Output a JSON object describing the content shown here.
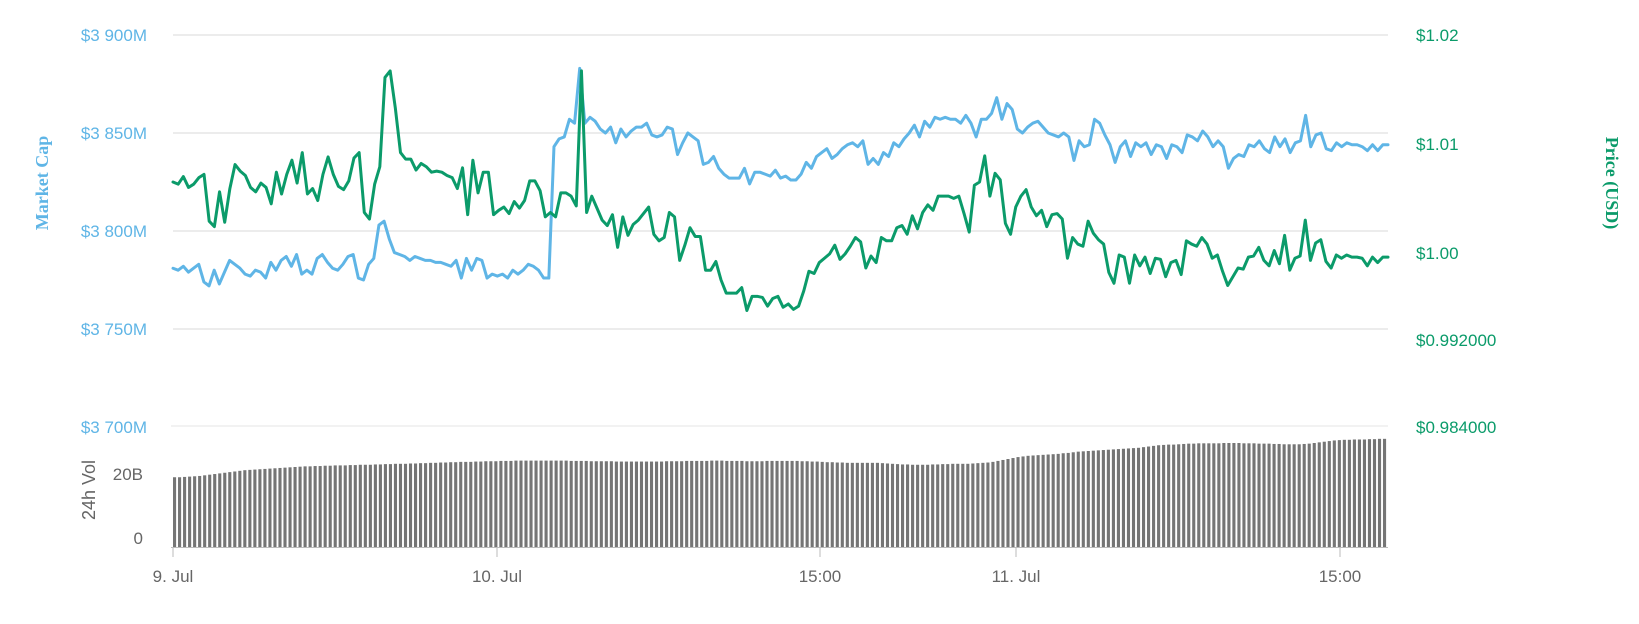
{
  "colors": {
    "market_cap": "#5fb5e6",
    "price": "#0b9b6a",
    "volume": "#757575",
    "grid": "#e6e6e6",
    "x_labels": "#666666"
  },
  "chart_data": [
    {
      "type": "line",
      "x_tick_labels": [
        "9. Jul",
        "10. Jul",
        "15:00",
        "11. Jul",
        "15:00"
      ],
      "grid": true,
      "left_axis": {
        "title": "Market Cap",
        "ticks": [
          "$3 900M",
          "$3 850M",
          "$3 800M",
          "$3 750M",
          "$3 700M"
        ],
        "tick_values": [
          3900,
          3850,
          3800,
          3750,
          3700
        ],
        "ylim": [
          3700,
          3900
        ],
        "unit": "M USD"
      },
      "right_axis": {
        "title": "Price (USD)",
        "ticks": [
          "$1.02",
          "$1.01",
          "$1.00",
          "$0.992000",
          "$0.984000"
        ],
        "tick_values": [
          1.02,
          1.01,
          1.0,
          0.992,
          0.984
        ],
        "ylim": [
          0.984,
          1.02
        ]
      },
      "series": [
        {
          "name": "Market Cap",
          "axis": "left",
          "values": [
            3781,
            3780,
            3782,
            3779,
            3781,
            3783,
            3774,
            3772,
            3780,
            3773,
            3779,
            3785,
            3783,
            3781,
            3778,
            3777,
            3780,
            3779,
            3776,
            3784,
            3780,
            3785,
            3787,
            3782,
            3788,
            3778,
            3780,
            3778,
            3786,
            3788,
            3784,
            3781,
            3780,
            3783,
            3787,
            3788,
            3776,
            3775,
            3783,
            3786,
            3803,
            3805,
            3796,
            3789,
            3788,
            3787,
            3785,
            3787,
            3786,
            3785,
            3785,
            3784,
            3784,
            3783,
            3782,
            3785,
            3776,
            3786,
            3780,
            3786,
            3785,
            3776,
            3778,
            3777,
            3778,
            3776,
            3780,
            3778,
            3780,
            3783,
            3782,
            3780,
            3776,
            3776,
            3843,
            3847,
            3848,
            3857,
            3855,
            3883,
            3855,
            3858,
            3856,
            3852,
            3850,
            3853,
            3845,
            3852,
            3848,
            3851,
            3853,
            3853,
            3855,
            3849,
            3848,
            3849,
            3853,
            3852,
            3839,
            3845,
            3850,
            3848,
            3846,
            3834,
            3835,
            3838,
            3832,
            3829,
            3827,
            3827,
            3827,
            3832,
            3824,
            3830,
            3830,
            3829,
            3828,
            3831,
            3827,
            3828,
            3826,
            3826,
            3829,
            3835,
            3832,
            3838,
            3840,
            3842,
            3837,
            3839,
            3842,
            3844,
            3845,
            3843,
            3846,
            3834,
            3837,
            3834,
            3840,
            3838,
            3845,
            3843,
            3847,
            3850,
            3854,
            3848,
            3856,
            3853,
            3858,
            3857,
            3858,
            3857,
            3857,
            3855,
            3859,
            3855,
            3848,
            3857,
            3857,
            3860,
            3868,
            3857,
            3865,
            3862,
            3852,
            3850,
            3853,
            3855,
            3856,
            3853,
            3850,
            3849,
            3848,
            3850,
            3848,
            3836,
            3846,
            3843,
            3844,
            3857,
            3855,
            3849,
            3844,
            3835,
            3843,
            3846,
            3838,
            3845,
            3843,
            3845,
            3839,
            3844,
            3843,
            3837,
            3844,
            3843,
            3840,
            3849,
            3848,
            3846,
            3851,
            3848,
            3843,
            3846,
            3843,
            3832,
            3837,
            3839,
            3838,
            3844,
            3843,
            3846,
            3842,
            3840,
            3848,
            3843,
            3847,
            3840,
            3845,
            3846,
            3859,
            3843,
            3849,
            3850,
            3842,
            3841,
            3845,
            3843,
            3845,
            3844,
            3844,
            3843,
            3841,
            3844,
            3841,
            3844,
            3844
          ]
        },
        {
          "name": "Price (USD)",
          "axis": "right",
          "values": [
            1.0065,
            1.0063,
            1.007,
            1.006,
            1.0063,
            1.0069,
            1.0072,
            1.0029,
            1.0024,
            1.0056,
            1.0028,
            1.0059,
            1.0081,
            1.0075,
            1.0071,
            1.006,
            1.0056,
            1.0064,
            1.006,
            1.0045,
            1.0074,
            1.0054,
            1.0072,
            1.0085,
            1.0064,
            1.0092,
            1.0054,
            1.0059,
            1.0048,
            1.0072,
            1.0088,
            1.0072,
            1.0061,
            1.0058,
            1.0066,
            1.0087,
            1.0092,
            1.0037,
            1.0031,
            1.0063,
            1.0079,
            1.0161,
            1.0167,
            1.0133,
            1.0092,
            1.0086,
            1.0086,
            1.0076,
            1.0082,
            1.0079,
            1.0074,
            1.0075,
            1.0074,
            1.0071,
            1.0069,
            1.0059,
            1.0078,
            1.0035,
            1.0085,
            1.0055,
            1.0074,
            1.0074,
            1.0035,
            1.0039,
            1.0042,
            1.0036,
            1.0047,
            1.0041,
            1.0048,
            1.0066,
            1.0066,
            1.0057,
            1.0033,
            1.0037,
            1.0033,
            1.0055,
            1.0055,
            1.0052,
            1.0043,
            1.0167,
            1.0037,
            1.0052,
            1.0041,
            1.003,
            1.0025,
            1.0035,
            1.0005,
            1.0033,
            1.0016,
            1.0026,
            1.003,
            1.0036,
            1.0042,
            1.0017,
            1.0011,
            1.0014,
            1.0037,
            1.0033,
            0.9993,
            1.0007,
            1.0023,
            1.0015,
            1.0015,
            0.9984,
            0.9984,
            0.9992,
            0.9975,
            0.9963,
            0.9963,
            0.9963,
            0.9968,
            0.9947,
            0.996,
            0.996,
            0.9959,
            0.9951,
            0.9958,
            0.996,
            0.995,
            0.9953,
            0.9948,
            0.9951,
            0.9965,
            0.9983,
            0.9981,
            0.9991,
            0.9995,
            0.9999,
            1.0007,
            0.9994,
            0.9999,
            1.0006,
            1.0014,
            1.001,
            0.9986,
            0.9997,
            0.9991,
            1.0014,
            1.0011,
            1.0011,
            1.0023,
            1.0025,
            1.0017,
            1.0034,
            1.0022,
            1.0037,
            1.0044,
            1.0039,
            1.0052,
            1.0052,
            1.0052,
            1.005,
            1.0052,
            1.0036,
            1.0019,
            1.0062,
            1.0065,
            1.0089,
            1.0052,
            1.0073,
            1.0067,
            1.0027,
            1.0017,
            1.0042,
            1.0052,
            1.0058,
            1.0042,
            1.0034,
            1.0039,
            1.0024,
            1.0035,
            1.0036,
            1.0031,
            0.9995,
            1.0014,
            1.0008,
            1.0006,
            1.0029,
            1.0018,
            1.0012,
            1.0008,
            0.9982,
            0.9972,
            0.9998,
            0.9996,
            0.9972,
            0.9998,
            0.9988,
            0.9996,
            0.9981,
            0.9995,
            0.9994,
            0.9978,
            0.9991,
            0.9993,
            0.998,
            1.0011,
            1.0008,
            1.0006,
            1.0014,
            1.0008,
            0.9995,
            0.9998,
            0.9983,
            0.997,
            0.9978,
            0.9986,
            0.9985,
            0.9996,
            0.9997,
            1.0005,
            0.9993,
            0.9988,
            1.0002,
            0.999,
            1.0016,
            0.9984,
            0.9995,
            0.9997,
            1.003,
            0.9993,
            1.0009,
            1.0012,
            0.9992,
            0.9986,
            0.9998,
            0.9995,
            0.9998,
            0.9996,
            0.9996,
            0.9995,
            0.9988,
            0.9996,
            0.9991,
            0.9996,
            0.9996
          ]
        }
      ]
    },
    {
      "type": "bar",
      "axis_title": "24h Vol",
      "ticks": [
        "20B",
        "0"
      ],
      "tick_values": [
        20,
        0
      ],
      "ylim": [
        0,
        37.5
      ],
      "unit": "B USD",
      "series": [
        {
          "name": "24h Vol",
          "values": [
            21.8,
            21.8,
            21.9,
            22,
            22.1,
            22.2,
            22.4,
            22.6,
            22.8,
            23,
            23.2,
            23.4,
            23.6,
            23.8,
            24,
            24.1,
            24.2,
            24.3,
            24.4,
            24.5,
            24.6,
            24.7,
            24.8,
            24.9,
            25,
            25.1,
            25.2,
            25.2,
            25.3,
            25.3,
            25.4,
            25.4,
            25.5,
            25.5,
            25.5,
            25.6,
            25.6,
            25.7,
            25.7,
            25.7,
            25.8,
            25.8,
            25.9,
            25.9,
            26,
            26,
            26,
            26.1,
            26.1,
            26.2,
            26.2,
            26.3,
            26.3,
            26.4,
            26.4,
            26.5,
            26.5,
            26.6,
            26.6,
            26.6,
            26.7,
            26.7,
            26.8,
            26.8,
            26.8,
            26.9,
            26.9,
            26.9,
            27,
            27,
            27,
            27,
            27,
            27,
            27,
            27,
            27,
            27,
            27,
            26.9,
            26.9,
            26.9,
            26.9,
            26.8,
            26.8,
            26.8,
            26.8,
            26.8,
            26.7,
            26.7,
            26.7,
            26.7,
            26.7,
            26.7,
            26.7,
            26.7,
            26.7,
            26.7,
            26.8,
            26.8,
            26.8,
            26.8,
            26.9,
            26.9,
            26.9,
            26.9,
            26.9,
            27,
            27,
            27,
            26.9,
            26.9,
            26.9,
            26.9,
            26.8,
            26.8,
            26.8,
            26.8,
            26.9,
            26.9,
            26.9,
            26.9,
            26.9,
            26.9,
            26.9,
            26.8,
            26.8,
            26.7,
            26.7,
            26.6,
            26.5,
            26.5,
            26.4,
            26.4,
            26.3,
            26.3,
            26.3,
            26.3,
            26.3,
            26.3,
            26.3,
            26.2,
            26.1,
            26,
            25.9,
            25.8,
            25.8,
            25.7,
            25.7,
            25.7,
            25.7,
            25.8,
            25.8,
            25.9,
            25.9,
            26,
            26,
            26,
            26,
            26.1,
            26.2,
            26.3,
            26.4,
            26.6,
            26.9,
            27.2,
            27.5,
            27.8,
            28.1,
            28.3,
            28.5,
            28.6,
            28.7,
            28.8,
            28.9,
            29,
            29.1,
            29.3,
            29.4,
            29.6,
            29.8,
            29.9,
            30,
            30.1,
            30.2,
            30.3,
            30.4,
            30.5,
            30.6,
            30.7,
            30.8,
            30.9,
            31,
            31.2,
            31.4,
            31.6,
            31.8,
            31.9,
            32,
            32,
            32.1,
            32.2,
            32.3,
            32.3,
            32.4,
            32.4,
            32.4,
            32.4,
            32.4,
            32.5,
            32.5,
            32.5,
            32.5,
            32.4,
            32.4,
            32.4,
            32.3,
            32.3,
            32.3,
            32.2,
            32.2,
            32.1,
            32.1,
            32.1,
            32.1,
            32.2,
            32.3,
            32.5,
            32.7,
            32.9,
            33.1,
            33.3,
            33.4,
            33.5,
            33.5,
            33.6,
            33.6,
            33.6,
            33.7,
            33.7,
            33.8,
            33.8
          ]
        }
      ]
    }
  ]
}
